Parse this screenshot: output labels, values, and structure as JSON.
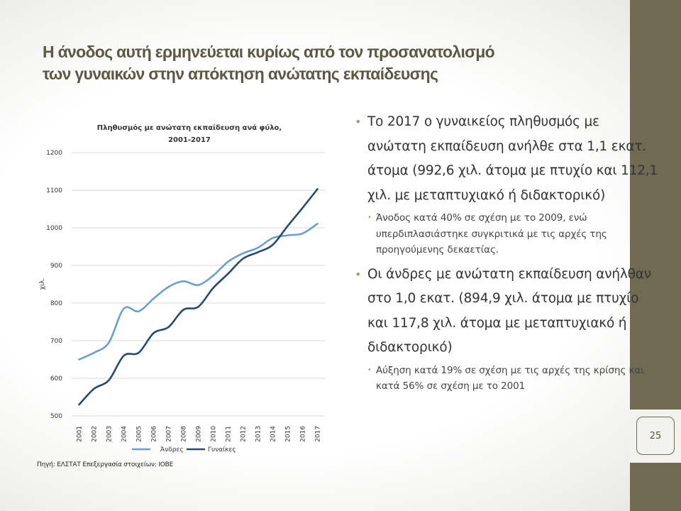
{
  "slide": {
    "title_line1": "Η άνοδος αυτή ερμηνεύεται κυρίως από τον προσανατολισμό",
    "title_line2": "των γυναικών στην απόκτηση ανώτατης εκπαίδευσης",
    "page_number": "25",
    "source": "Πηγή: ΕΛΣΤΑΤ Επεξεργασία στοιχείων: ΙΟΒΕ",
    "accent_color": "#716a52",
    "bullet_color": "#9aa76a"
  },
  "bullets": [
    {
      "text": "Το 2017 ο γυναικείος πληθυσμός με ανώτατη εκπαίδευση ανήλθε στα 1,1 εκατ. άτομα (992,6 χιλ. άτομα με πτυχίο και 112,1 χιλ. με μεταπτυχιακό ή διδακτορικό)",
      "sub": "Άνοδος κατά 40% σε σχέση με το 2009, ενώ υπερδιπλασιάστηκε συγκριτικά με τις αρχές της προηγούμενης δεκαετίας."
    },
    {
      "text": "Οι άνδρες με ανώτατη εκπαίδευση ανήλθαν στο 1,0 εκατ. (894,9 χιλ. άτομα με πτυχίο και 117,8 χιλ. άτομα με μεταπτυχιακό ή διδακτορικό)",
      "sub": "Αύξηση κατά 19% σε σχέση με τις αρχές της κρίσης και κατά 56% σε σχέση με το 2001"
    }
  ],
  "chart_data": {
    "type": "line",
    "title_line1": "Πληθυσμός με ανώτατη εκπαίδευση ανά φύλο,",
    "title_line2": "2001-2017",
    "ylabel": "χιλ.",
    "xlabel": "",
    "ylim": [
      500,
      1200
    ],
    "yticks": [
      500,
      600,
      700,
      800,
      900,
      1000,
      1100,
      1200
    ],
    "grid": true,
    "legend": "bottom",
    "categories": [
      "2001",
      "2002",
      "2003",
      "2004",
      "2005",
      "2006",
      "2007",
      "2008",
      "2009",
      "2010",
      "2011",
      "2012",
      "2013",
      "2014",
      "2015",
      "2016",
      "2017"
    ],
    "series": [
      {
        "name": "Άνδρες",
        "color": "#6b9ed1",
        "values": [
          650,
          668,
          695,
          785,
          778,
          812,
          843,
          858,
          848,
          873,
          910,
          932,
          947,
          973,
          980,
          985,
          1011
        ]
      },
      {
        "name": "Γυναίκες",
        "color": "#244a6e",
        "values": [
          530,
          572,
          595,
          660,
          668,
          720,
          736,
          782,
          790,
          840,
          878,
          918,
          935,
          955,
          1005,
          1053,
          1103
        ]
      }
    ]
  }
}
